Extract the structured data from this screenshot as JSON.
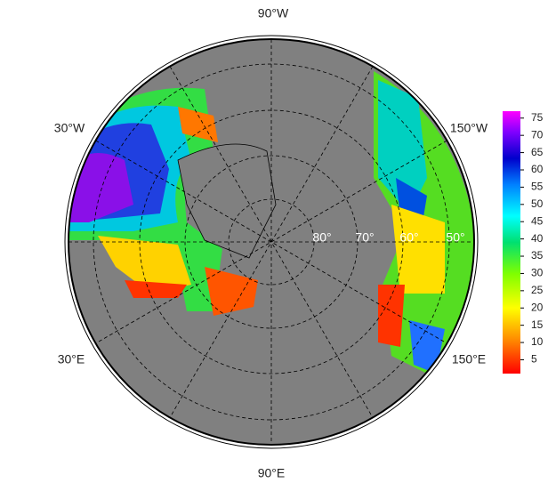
{
  "map": {
    "longitude_labels": [
      "90°W",
      "30°W",
      "150°W",
      "30°E",
      "150°E",
      "90°E"
    ],
    "latitude_labels": [
      "80°",
      "70°",
      "60°",
      "50°"
    ]
  },
  "colorbar": {
    "lim": [
      1,
      77
    ],
    "ticks": [
      5,
      10,
      15,
      20,
      25,
      30,
      35,
      40,
      45,
      50,
      55,
      60,
      65,
      70,
      75
    ]
  }
}
